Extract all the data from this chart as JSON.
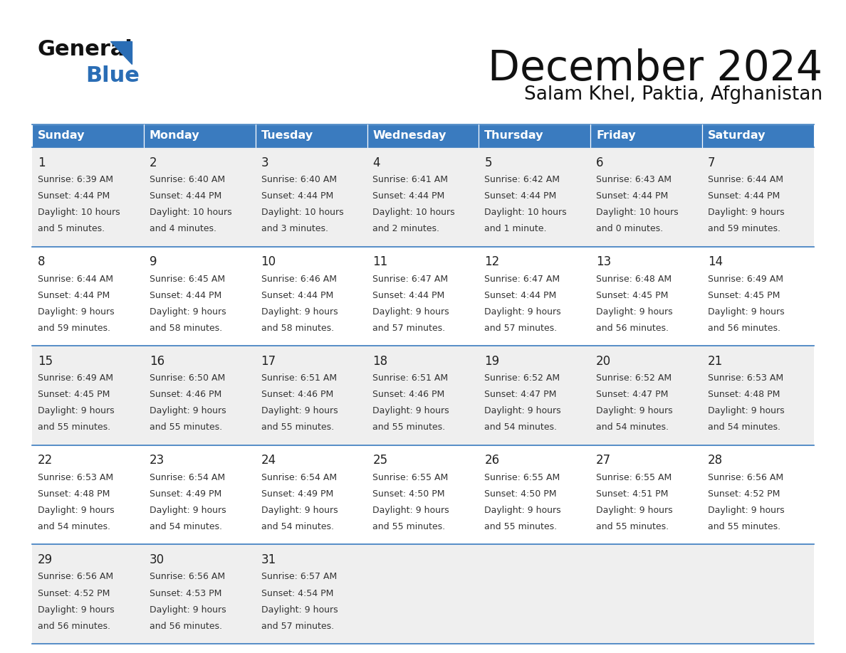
{
  "title": "December 2024",
  "subtitle": "Salam Khel, Paktia, Afghanistan",
  "days_of_week": [
    "Sunday",
    "Monday",
    "Tuesday",
    "Wednesday",
    "Thursday",
    "Friday",
    "Saturday"
  ],
  "header_bg": "#3a7bbf",
  "header_text": "#ffffff",
  "row_bg_light": "#efefef",
  "row_bg_white": "#ffffff",
  "cell_border_color": "#3a7bbf",
  "day_num_color": "#222222",
  "text_color": "#333333",
  "logo_general_color": "#111111",
  "logo_blue_color": "#2a6db5",
  "calendar_data": [
    [
      {
        "day": 1,
        "sunrise": "6:39 AM",
        "sunset": "4:44 PM",
        "dl1": "Daylight: 10 hours",
        "dl2": "and 5 minutes."
      },
      {
        "day": 2,
        "sunrise": "6:40 AM",
        "sunset": "4:44 PM",
        "dl1": "Daylight: 10 hours",
        "dl2": "and 4 minutes."
      },
      {
        "day": 3,
        "sunrise": "6:40 AM",
        "sunset": "4:44 PM",
        "dl1": "Daylight: 10 hours",
        "dl2": "and 3 minutes."
      },
      {
        "day": 4,
        "sunrise": "6:41 AM",
        "sunset": "4:44 PM",
        "dl1": "Daylight: 10 hours",
        "dl2": "and 2 minutes."
      },
      {
        "day": 5,
        "sunrise": "6:42 AM",
        "sunset": "4:44 PM",
        "dl1": "Daylight: 10 hours",
        "dl2": "and 1 minute."
      },
      {
        "day": 6,
        "sunrise": "6:43 AM",
        "sunset": "4:44 PM",
        "dl1": "Daylight: 10 hours",
        "dl2": "and 0 minutes."
      },
      {
        "day": 7,
        "sunrise": "6:44 AM",
        "sunset": "4:44 PM",
        "dl1": "Daylight: 9 hours",
        "dl2": "and 59 minutes."
      }
    ],
    [
      {
        "day": 8,
        "sunrise": "6:44 AM",
        "sunset": "4:44 PM",
        "dl1": "Daylight: 9 hours",
        "dl2": "and 59 minutes."
      },
      {
        "day": 9,
        "sunrise": "6:45 AM",
        "sunset": "4:44 PM",
        "dl1": "Daylight: 9 hours",
        "dl2": "and 58 minutes."
      },
      {
        "day": 10,
        "sunrise": "6:46 AM",
        "sunset": "4:44 PM",
        "dl1": "Daylight: 9 hours",
        "dl2": "and 58 minutes."
      },
      {
        "day": 11,
        "sunrise": "6:47 AM",
        "sunset": "4:44 PM",
        "dl1": "Daylight: 9 hours",
        "dl2": "and 57 minutes."
      },
      {
        "day": 12,
        "sunrise": "6:47 AM",
        "sunset": "4:44 PM",
        "dl1": "Daylight: 9 hours",
        "dl2": "and 57 minutes."
      },
      {
        "day": 13,
        "sunrise": "6:48 AM",
        "sunset": "4:45 PM",
        "dl1": "Daylight: 9 hours",
        "dl2": "and 56 minutes."
      },
      {
        "day": 14,
        "sunrise": "6:49 AM",
        "sunset": "4:45 PM",
        "dl1": "Daylight: 9 hours",
        "dl2": "and 56 minutes."
      }
    ],
    [
      {
        "day": 15,
        "sunrise": "6:49 AM",
        "sunset": "4:45 PM",
        "dl1": "Daylight: 9 hours",
        "dl2": "and 55 minutes."
      },
      {
        "day": 16,
        "sunrise": "6:50 AM",
        "sunset": "4:46 PM",
        "dl1": "Daylight: 9 hours",
        "dl2": "and 55 minutes."
      },
      {
        "day": 17,
        "sunrise": "6:51 AM",
        "sunset": "4:46 PM",
        "dl1": "Daylight: 9 hours",
        "dl2": "and 55 minutes."
      },
      {
        "day": 18,
        "sunrise": "6:51 AM",
        "sunset": "4:46 PM",
        "dl1": "Daylight: 9 hours",
        "dl2": "and 55 minutes."
      },
      {
        "day": 19,
        "sunrise": "6:52 AM",
        "sunset": "4:47 PM",
        "dl1": "Daylight: 9 hours",
        "dl2": "and 54 minutes."
      },
      {
        "day": 20,
        "sunrise": "6:52 AM",
        "sunset": "4:47 PM",
        "dl1": "Daylight: 9 hours",
        "dl2": "and 54 minutes."
      },
      {
        "day": 21,
        "sunrise": "6:53 AM",
        "sunset": "4:48 PM",
        "dl1": "Daylight: 9 hours",
        "dl2": "and 54 minutes."
      }
    ],
    [
      {
        "day": 22,
        "sunrise": "6:53 AM",
        "sunset": "4:48 PM",
        "dl1": "Daylight: 9 hours",
        "dl2": "and 54 minutes."
      },
      {
        "day": 23,
        "sunrise": "6:54 AM",
        "sunset": "4:49 PM",
        "dl1": "Daylight: 9 hours",
        "dl2": "and 54 minutes."
      },
      {
        "day": 24,
        "sunrise": "6:54 AM",
        "sunset": "4:49 PM",
        "dl1": "Daylight: 9 hours",
        "dl2": "and 54 minutes."
      },
      {
        "day": 25,
        "sunrise": "6:55 AM",
        "sunset": "4:50 PM",
        "dl1": "Daylight: 9 hours",
        "dl2": "and 55 minutes."
      },
      {
        "day": 26,
        "sunrise": "6:55 AM",
        "sunset": "4:50 PM",
        "dl1": "Daylight: 9 hours",
        "dl2": "and 55 minutes."
      },
      {
        "day": 27,
        "sunrise": "6:55 AM",
        "sunset": "4:51 PM",
        "dl1": "Daylight: 9 hours",
        "dl2": "and 55 minutes."
      },
      {
        "day": 28,
        "sunrise": "6:56 AM",
        "sunset": "4:52 PM",
        "dl1": "Daylight: 9 hours",
        "dl2": "and 55 minutes."
      }
    ],
    [
      {
        "day": 29,
        "sunrise": "6:56 AM",
        "sunset": "4:52 PM",
        "dl1": "Daylight: 9 hours",
        "dl2": "and 56 minutes."
      },
      {
        "day": 30,
        "sunrise": "6:56 AM",
        "sunset": "4:53 PM",
        "dl1": "Daylight: 9 hours",
        "dl2": "and 56 minutes."
      },
      {
        "day": 31,
        "sunrise": "6:57 AM",
        "sunset": "4:54 PM",
        "dl1": "Daylight: 9 hours",
        "dl2": "and 57 minutes."
      },
      null,
      null,
      null,
      null
    ]
  ]
}
